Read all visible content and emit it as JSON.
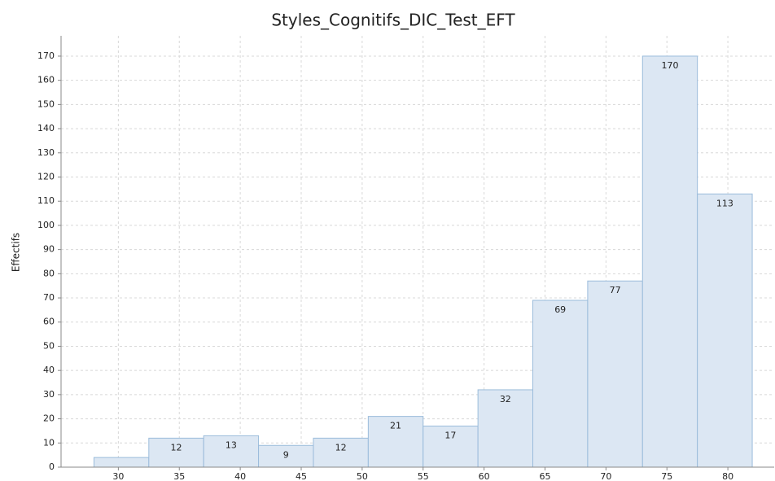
{
  "chart_data": {
    "type": "histogram",
    "title": "Styles_Cognitifs_DIC_Test_EFT",
    "ylabel": "Effectifs",
    "bins": [
      28,
      32.5,
      37,
      41.5,
      46,
      50.5,
      55,
      59.5,
      64,
      68.5,
      73,
      77.5,
      82
    ],
    "values": [
      4,
      12,
      13,
      9,
      12,
      21,
      17,
      32,
      69,
      77,
      170,
      113
    ],
    "value_labels": [
      null,
      "12",
      "13",
      "9",
      "12",
      "21",
      "17",
      "32",
      "69",
      "77",
      "170",
      "113"
    ],
    "color": "#dce7f3",
    "edge_color": "#9bbcdb",
    "xlim": [
      25.3,
      83.8
    ],
    "xticks": [
      30,
      35,
      40,
      45,
      50,
      55,
      60,
      65,
      70,
      75,
      80
    ],
    "ylim": [
      0,
      178.4
    ],
    "yticks": [
      0,
      10,
      20,
      30,
      40,
      50,
      60,
      70,
      80,
      90,
      100,
      110,
      120,
      130,
      140,
      150,
      160,
      170
    ],
    "grid": true
  }
}
